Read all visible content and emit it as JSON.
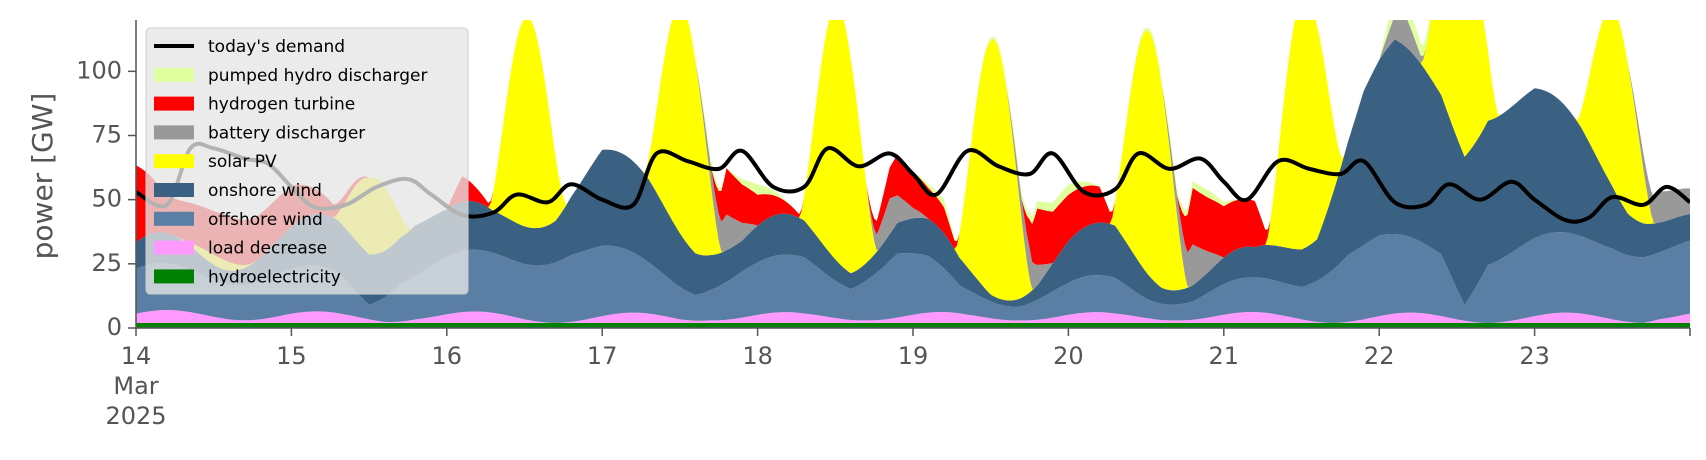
{
  "chart_data": {
    "type": "area",
    "title": "",
    "ylabel": "power [GW]",
    "xlabel": "",
    "ylim": [
      0,
      120
    ],
    "xlim": [
      14,
      24
    ],
    "x_ticks": [
      {
        "value": 14,
        "label": "14",
        "sub": [
          "Mar",
          "2025"
        ]
      },
      {
        "value": 15,
        "label": "15"
      },
      {
        "value": 16,
        "label": "16"
      },
      {
        "value": 17,
        "label": "17"
      },
      {
        "value": 18,
        "label": "18"
      },
      {
        "value": 19,
        "label": "19"
      },
      {
        "value": 20,
        "label": "20"
      },
      {
        "value": 21,
        "label": "21"
      },
      {
        "value": 22,
        "label": "22"
      },
      {
        "value": 23,
        "label": "23"
      }
    ],
    "y_ticks": [
      0,
      25,
      50,
      75,
      100
    ],
    "legend_position": "top-left",
    "x_unit": "day of March 2025",
    "series": [
      {
        "key": "hydro",
        "name": "hydroelectricity",
        "color": "#008000",
        "base": 1,
        "swing": 0,
        "peak_at": 0.5,
        "sharp": 1,
        "trend": [
          [
            14,
            1
          ],
          [
            24,
            1
          ]
        ]
      },
      {
        "key": "load",
        "name": "load decrease",
        "color": "#ff99ff",
        "base": 2,
        "swing": 2,
        "peak_at": 0.2,
        "sharp": 1,
        "trend": [
          [
            14,
            1
          ],
          [
            15,
            1
          ],
          [
            15.35,
            0
          ],
          [
            15.6,
            0
          ],
          [
            15.8,
            1
          ],
          [
            16.5,
            0
          ],
          [
            17.5,
            0
          ],
          [
            17.7,
            1
          ],
          [
            18.3,
            0
          ],
          [
            18.7,
            1
          ],
          [
            19.35,
            0
          ],
          [
            19.7,
            1
          ],
          [
            20.3,
            0
          ],
          [
            20.7,
            1
          ],
          [
            21.35,
            0
          ],
          [
            23.7,
            0
          ],
          [
            23.8,
            1
          ],
          [
            24,
            1
          ]
        ]
      },
      {
        "key": "offshore",
        "name": "offshore wind",
        "color": "#5b7fa4",
        "base": 5,
        "swing": 3,
        "peak_at": 0.1,
        "sharp": 1,
        "trend": [
          [
            14,
            10
          ],
          [
            14.5,
            12
          ],
          [
            15,
            10
          ],
          [
            15.3,
            10
          ],
          [
            15.5,
            3
          ],
          [
            15.7,
            12
          ],
          [
            16,
            15
          ],
          [
            16.5,
            19
          ],
          [
            16.8,
            22
          ],
          [
            17,
            20
          ],
          [
            17.3,
            14
          ],
          [
            17.6,
            8
          ],
          [
            17.9,
            12
          ],
          [
            18.3,
            16
          ],
          [
            18.6,
            10
          ],
          [
            18.9,
            19
          ],
          [
            19.1,
            14
          ],
          [
            19.3,
            5
          ],
          [
            19.7,
            3
          ],
          [
            20.0,
            5
          ],
          [
            20.3,
            8
          ],
          [
            20.5,
            5
          ],
          [
            20.8,
            3
          ],
          [
            21.2,
            6
          ],
          [
            21.5,
            10
          ],
          [
            21.8,
            22
          ],
          [
            22,
            24
          ],
          [
            22.4,
            20
          ],
          [
            22.55,
            4
          ],
          [
            22.7,
            20
          ],
          [
            23,
            23
          ],
          [
            23.5,
            25
          ],
          [
            23.8,
            22
          ],
          [
            24,
            21
          ]
        ]
      },
      {
        "key": "onshore",
        "name": "onshore wind",
        "color": "#3b6182",
        "base": 0,
        "swing": 4,
        "peak_at": 0.15,
        "sharp": 1,
        "trend": [
          [
            14,
            8
          ],
          [
            14.5,
            8
          ],
          [
            15,
            14
          ],
          [
            15.3,
            18
          ],
          [
            15.5,
            22
          ],
          [
            15.8,
            22
          ],
          [
            16,
            16
          ],
          [
            16.3,
            14
          ],
          [
            16.7,
            20
          ],
          [
            17,
            35
          ],
          [
            17.3,
            30
          ],
          [
            17.6,
            20
          ],
          [
            17.9,
            12
          ],
          [
            18.3,
            12
          ],
          [
            18.6,
            10
          ],
          [
            18.9,
            12
          ],
          [
            19.2,
            10
          ],
          [
            19.5,
            5
          ],
          [
            19.8,
            8
          ],
          [
            20.0,
            14
          ],
          [
            20.3,
            18
          ],
          [
            20.6,
            10
          ],
          [
            20.9,
            8
          ],
          [
            21.2,
            8
          ],
          [
            21.6,
            20
          ],
          [
            21.9,
            60
          ],
          [
            22.1,
            72
          ],
          [
            22.4,
            62
          ],
          [
            22.7,
            60
          ],
          [
            23,
            56
          ],
          [
            23.3,
            40
          ],
          [
            23.6,
            20
          ],
          [
            23.8,
            14
          ],
          [
            24,
            8
          ]
        ]
      },
      {
        "key": "solar",
        "name": "solar PV",
        "color": "#ffff00",
        "base": 0,
        "swing": 1,
        "peak_at": 0.5,
        "sharp": 1,
        "trend": [
          [
            14,
            0
          ]
        ]
      },
      {
        "key": "battery",
        "name": "battery discharger",
        "color": "#999999",
        "base": 0,
        "swing": 0,
        "peak_at": 0.5,
        "sharp": 1,
        "trend": [
          [
            14,
            0
          ],
          [
            17.6,
            0
          ],
          [
            17.8,
            14
          ],
          [
            18.0,
            0
          ],
          [
            18.7,
            0
          ],
          [
            18.85,
            14
          ],
          [
            19.0,
            4
          ],
          [
            19.1,
            0
          ],
          [
            19.6,
            0
          ],
          [
            19.75,
            12
          ],
          [
            19.9,
            0
          ],
          [
            20.6,
            0
          ],
          [
            20.8,
            16
          ],
          [
            21.0,
            0
          ],
          [
            22.0,
            0
          ],
          [
            22.15,
            14
          ],
          [
            22.3,
            0
          ],
          [
            23.6,
            0
          ],
          [
            23.8,
            12
          ],
          [
            24,
            10
          ]
        ]
      },
      {
        "key": "hydrogen",
        "name": "hydrogen turbine",
        "color": "#ff0000",
        "base": 0,
        "swing": 0,
        "peak_at": 0.5,
        "sharp": 1,
        "trend": [
          [
            14,
            30
          ],
          [
            14.2,
            14
          ],
          [
            14.6,
            18
          ],
          [
            15,
            16
          ],
          [
            15.3,
            4
          ],
          [
            15.5,
            0
          ],
          [
            16.0,
            0
          ],
          [
            16.1,
            10
          ],
          [
            16.3,
            0
          ],
          [
            17.7,
            0
          ],
          [
            17.8,
            18
          ],
          [
            18.0,
            12
          ],
          [
            18.3,
            0
          ],
          [
            18.7,
            0
          ],
          [
            18.9,
            16
          ],
          [
            19.2,
            10
          ],
          [
            19.3,
            0
          ],
          [
            19.7,
            0
          ],
          [
            19.8,
            22
          ],
          [
            20.2,
            14
          ],
          [
            20.3,
            0
          ],
          [
            20.7,
            0
          ],
          [
            20.8,
            22
          ],
          [
            21.2,
            18
          ],
          [
            21.3,
            0
          ],
          [
            24,
            0
          ]
        ]
      },
      {
        "key": "pumped",
        "name": "pumped hydro discharger",
        "color": "#dfff9f",
        "base": 0,
        "swing": 0,
        "peak_at": 0.5,
        "sharp": 1,
        "trend": [
          [
            14,
            0
          ],
          [
            17.6,
            0
          ],
          [
            17.7,
            3
          ],
          [
            17.8,
            0
          ],
          [
            18.0,
            4
          ],
          [
            18.2,
            0
          ],
          [
            19.0,
            0
          ],
          [
            19.2,
            3
          ],
          [
            19.3,
            0
          ],
          [
            20.0,
            4
          ],
          [
            20.2,
            0
          ],
          [
            20.9,
            3
          ],
          [
            21.1,
            0
          ],
          [
            22.0,
            0
          ],
          [
            22.1,
            8
          ],
          [
            22.3,
            4
          ],
          [
            22.4,
            0
          ],
          [
            24,
            0
          ]
        ]
      }
    ],
    "solar_days": [
      {
        "day": 14,
        "peak": 4
      },
      {
        "day": 15,
        "peak": 30
      },
      {
        "day": 16,
        "peak": 82
      },
      {
        "day": 17,
        "peak": 90
      },
      {
        "day": 18,
        "peak": 100
      },
      {
        "day": 19,
        "peak": 100
      },
      {
        "day": 20,
        "peak": 95
      },
      {
        "day": 21,
        "peak": 100
      },
      {
        "day": 22,
        "peak": 90
      },
      {
        "day": 23,
        "peak": 70
      }
    ],
    "demand": {
      "name": "today's demand",
      "color": "#000000",
      "points": [
        [
          14,
          53
        ],
        [
          14.2,
          48
        ],
        [
          14.35,
          70
        ],
        [
          14.5,
          70
        ],
        [
          14.7,
          66
        ],
        [
          14.85,
          64
        ],
        [
          15.0,
          55
        ],
        [
          15.15,
          47
        ],
        [
          15.35,
          48
        ],
        [
          15.55,
          55
        ],
        [
          15.75,
          58
        ],
        [
          15.9,
          52
        ],
        [
          16.1,
          44
        ],
        [
          16.3,
          45
        ],
        [
          16.45,
          52
        ],
        [
          16.65,
          49
        ],
        [
          16.8,
          56
        ],
        [
          17.0,
          50
        ],
        [
          17.2,
          48
        ],
        [
          17.35,
          68
        ],
        [
          17.55,
          65
        ],
        [
          17.75,
          62
        ],
        [
          17.9,
          69
        ],
        [
          18.1,
          55
        ],
        [
          18.3,
          55
        ],
        [
          18.45,
          70
        ],
        [
          18.65,
          63
        ],
        [
          18.85,
          68
        ],
        [
          19.0,
          60
        ],
        [
          19.15,
          52
        ],
        [
          19.35,
          69
        ],
        [
          19.55,
          63
        ],
        [
          19.75,
          60
        ],
        [
          19.9,
          68
        ],
        [
          20.1,
          53
        ],
        [
          20.3,
          54
        ],
        [
          20.45,
          68
        ],
        [
          20.65,
          62
        ],
        [
          20.85,
          66
        ],
        [
          21.0,
          57
        ],
        [
          21.15,
          50
        ],
        [
          21.35,
          65
        ],
        [
          21.55,
          62
        ],
        [
          21.75,
          60
        ],
        [
          21.9,
          65
        ],
        [
          22.1,
          49
        ],
        [
          22.3,
          48
        ],
        [
          22.45,
          56
        ],
        [
          22.65,
          50
        ],
        [
          22.85,
          57
        ],
        [
          23.0,
          50
        ],
        [
          23.2,
          42
        ],
        [
          23.35,
          43
        ],
        [
          23.5,
          51
        ],
        [
          23.7,
          48
        ],
        [
          23.85,
          55
        ],
        [
          24,
          49
        ]
      ],
      "faded_until": 16.15
    }
  }
}
